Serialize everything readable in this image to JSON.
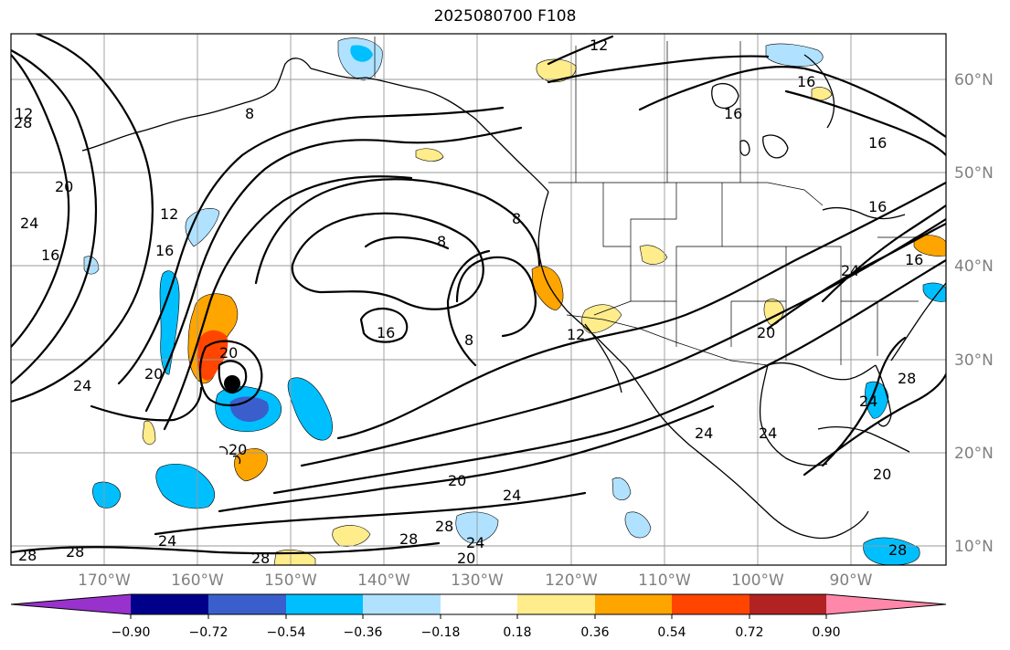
{
  "title": "2025080700 F108",
  "map": {
    "longitude_labels": [
      "170°W",
      "160°W",
      "150°W",
      "140°W",
      "130°W",
      "120°W",
      "110°W",
      "100°W",
      "90°W"
    ],
    "latitude_labels": [
      "60°N",
      "50°N",
      "40°N",
      "30°N",
      "20°N",
      "10°N"
    ],
    "contour_labels": [
      "12",
      "16",
      "8",
      "8",
      "16",
      "20",
      "24",
      "16",
      "12",
      "16",
      "8",
      "16",
      "8",
      "12",
      "16",
      "16",
      "24",
      "20",
      "20",
      "24",
      "28",
      "24",
      "20",
      "28",
      "24",
      "28",
      "28",
      "20",
      "24",
      "24",
      "28",
      "20",
      "28",
      "28",
      "20",
      "24",
      "20",
      "24",
      "28",
      "12",
      "16"
    ],
    "marker": "storm-center"
  },
  "colorbar": {
    "ticks": [
      "−0.90",
      "−0.72",
      "−0.54",
      "−0.36",
      "−0.18",
      "0.18",
      "0.36",
      "0.54",
      "0.72",
      "0.90"
    ],
    "colors": [
      "#9932cc",
      "#00008b",
      "#3a5fcd",
      "#00bfff",
      "#b0e2ff",
      "#ffffff",
      "#ffec8b",
      "#ffa500",
      "#ff4500",
      "#b22222",
      "#ff88aa"
    ]
  },
  "colors": {
    "neg_strong": "#3a5fcd",
    "neg_mid": "#00bfff",
    "neg_light": "#b0e2ff",
    "pos_light": "#ffec8b",
    "pos_mid": "#ffa500",
    "pos_strong": "#ff4500"
  }
}
